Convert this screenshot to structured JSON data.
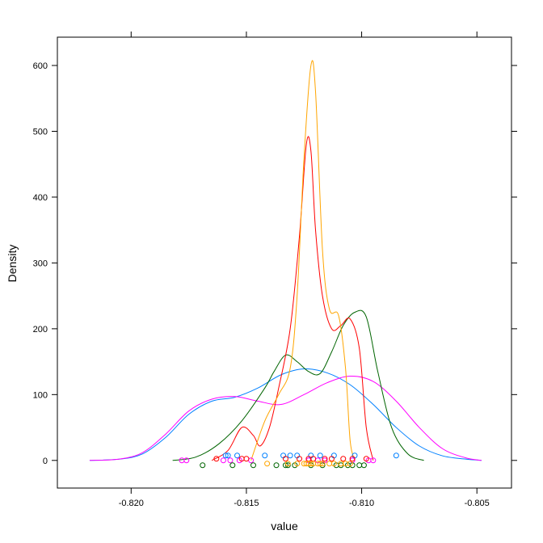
{
  "chart_data": {
    "type": "line",
    "title": "",
    "xlabel": "value",
    "ylabel": "Density",
    "xlim": [
      -0.8232,
      -0.8035
    ],
    "ylim": [
      -42,
      643
    ],
    "x_ticks": [
      -0.82,
      -0.815,
      -0.81,
      -0.805
    ],
    "x_tick_labels": [
      "-0.820",
      "-0.815",
      "-0.810",
      "-0.805"
    ],
    "y_ticks": [
      0,
      100,
      200,
      300,
      400,
      500,
      600
    ],
    "y_tick_labels": [
      "0",
      "100",
      "200",
      "300",
      "400",
      "500",
      "600"
    ],
    "grid": false,
    "legend": "none",
    "series": [
      {
        "color": "#0080ff",
        "x": [
          -0.8218,
          -0.8205,
          -0.8195,
          -0.8185,
          -0.8175,
          -0.8165,
          -0.8155,
          -0.8145,
          -0.8135,
          -0.8125,
          -0.8115,
          -0.8105,
          -0.8095,
          -0.8085,
          -0.8075,
          -0.8065,
          -0.8055,
          -0.8048
        ],
        "y": [
          0,
          2,
          10,
          35,
          70,
          90,
          96,
          110,
          130,
          139,
          133,
          115,
          85,
          50,
          22,
          7,
          2,
          0
        ],
        "rug": [
          -0.8159,
          -0.8154,
          -0.8142,
          -0.8134,
          -0.8128,
          -0.8122,
          -0.8118,
          -0.8112,
          -0.8103,
          -0.8085,
          -0.8158,
          -0.8131
        ]
      },
      {
        "color": "#ff00ff",
        "x": [
          -0.8218,
          -0.8205,
          -0.8195,
          -0.8185,
          -0.8175,
          -0.8165,
          -0.8155,
          -0.8145,
          -0.8135,
          -0.8125,
          -0.8115,
          -0.8105,
          -0.8095,
          -0.8085,
          -0.8075,
          -0.8065,
          -0.8055,
          -0.8048
        ],
        "y": [
          0,
          2,
          12,
          40,
          75,
          93,
          97,
          90,
          85,
          100,
          118,
          128,
          120,
          90,
          50,
          18,
          4,
          0
        ],
        "rug": [
          -0.8178,
          -0.8176,
          -0.816,
          -0.8153,
          -0.8148,
          -0.8123,
          -0.8116,
          -0.8104,
          -0.8097,
          -0.8095,
          -0.8119,
          -0.8157
        ]
      },
      {
        "color": "#006400",
        "x": [
          -0.8182,
          -0.8172,
          -0.8162,
          -0.8152,
          -0.8142,
          -0.8138,
          -0.8133,
          -0.8128,
          -0.8123,
          -0.8118,
          -0.8113,
          -0.8108,
          -0.8103,
          -0.8098,
          -0.8093,
          -0.8087,
          -0.808,
          -0.8073
        ],
        "y": [
          0,
          5,
          25,
          60,
          110,
          135,
          160,
          150,
          135,
          132,
          165,
          205,
          225,
          218,
          135,
          50,
          10,
          0
        ],
        "rug": [
          -0.8169,
          -0.8156,
          -0.8147,
          -0.8137,
          -0.8133,
          -0.8129,
          -0.8122,
          -0.8117,
          -0.8111,
          -0.8106,
          -0.8104,
          -0.8101,
          -0.8099,
          -0.8132,
          -0.8109
        ]
      },
      {
        "color": "#ff0000",
        "x": [
          -0.8165,
          -0.8158,
          -0.8152,
          -0.8147,
          -0.8144,
          -0.814,
          -0.8136,
          -0.8131,
          -0.8127,
          -0.8124,
          -0.8122,
          -0.812,
          -0.8117,
          -0.8113,
          -0.8109,
          -0.8105,
          -0.8101,
          -0.8098,
          -0.8095
        ],
        "y": [
          0,
          15,
          50,
          38,
          22,
          50,
          110,
          200,
          340,
          480,
          470,
          350,
          250,
          200,
          205,
          215,
          170,
          50,
          0
        ],
        "rug": [
          -0.8163,
          -0.8152,
          -0.815,
          -0.8133,
          -0.8127,
          -0.8123,
          -0.8116,
          -0.8113,
          -0.8108,
          -0.8104,
          -0.8098,
          -0.8121
        ]
      },
      {
        "color": "#ffa500",
        "x": [
          -0.8148,
          -0.8142,
          -0.8136,
          -0.8131,
          -0.8128,
          -0.8125,
          -0.8122,
          -0.812,
          -0.8117,
          -0.8114,
          -0.811,
          -0.8107,
          -0.8105,
          -0.8103
        ],
        "y": [
          0,
          60,
          100,
          140,
          250,
          460,
          600,
          560,
          320,
          230,
          220,
          140,
          30,
          0
        ],
        "rug": [
          -0.8141,
          -0.8132,
          -0.8128,
          -0.8125,
          -0.8123,
          -0.8121,
          -0.8119,
          -0.8117,
          -0.8114,
          -0.8112,
          -0.8109,
          -0.8107,
          -0.8105,
          -0.8122,
          -0.8118,
          -0.8124
        ]
      }
    ]
  }
}
